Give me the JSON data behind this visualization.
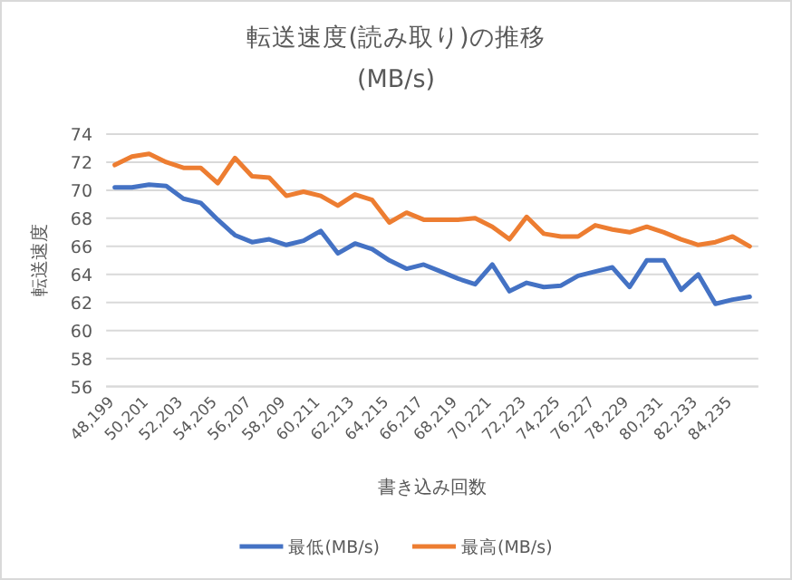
{
  "chart_data": {
    "type": "line",
    "title": "転送速度(読み取り)の推移",
    "subtitle": "(MB/s)",
    "xlabel": "書き込み回数",
    "ylabel": "転送速度",
    "categories": [
      "48,199",
      null,
      "50,201",
      null,
      "52,203",
      null,
      "54,205",
      null,
      "56,207",
      null,
      "58,209",
      null,
      "60,211",
      null,
      "62,213",
      null,
      "64,215",
      null,
      "66,217",
      null,
      "68,219",
      null,
      "70,221",
      null,
      "72,223",
      null,
      "74,225",
      null,
      "76,227",
      null,
      "78,229",
      null,
      "80,231",
      null,
      "82,233",
      null,
      "84,235",
      null
    ],
    "series": [
      {
        "name": "最低(MB/s)",
        "color": "#4472c4",
        "values": [
          70.2,
          70.2,
          70.4,
          70.3,
          69.4,
          69.1,
          67.9,
          66.8,
          66.3,
          66.5,
          66.1,
          66.4,
          67.1,
          65.5,
          66.2,
          65.8,
          65.0,
          64.4,
          64.7,
          64.2,
          63.7,
          63.3,
          64.7,
          62.8,
          63.4,
          63.1,
          63.2,
          63.9,
          64.2,
          64.5,
          63.1,
          65.0,
          65.0,
          62.9,
          64.0,
          61.9,
          62.2,
          62.4
        ]
      },
      {
        "name": "最高(MB/s)",
        "color": "#ed7d31",
        "values": [
          71.8,
          72.4,
          72.6,
          72.0,
          71.6,
          71.6,
          70.5,
          72.3,
          71.0,
          70.9,
          69.6,
          69.9,
          69.6,
          68.9,
          69.7,
          69.3,
          67.7,
          68.4,
          67.9,
          67.9,
          67.9,
          68.0,
          67.4,
          66.5,
          68.1,
          66.9,
          66.7,
          66.7,
          67.5,
          67.2,
          67.0,
          67.4,
          67.0,
          66.5,
          66.1,
          66.3,
          66.7,
          66.0
        ]
      }
    ],
    "ylim": [
      56,
      74
    ],
    "yticks": [
      56,
      58,
      60,
      62,
      64,
      66,
      68,
      70,
      72,
      74
    ],
    "grid": "y",
    "legend": "bottom"
  }
}
